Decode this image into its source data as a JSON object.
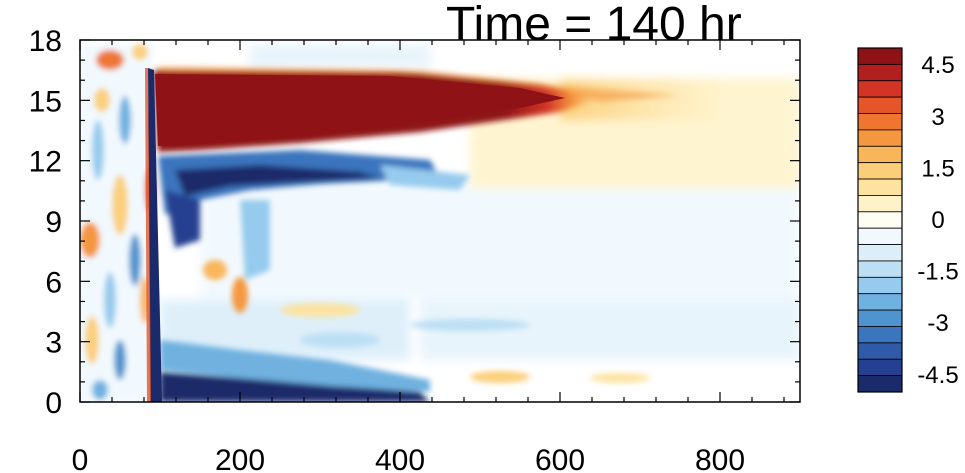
{
  "chart_data": {
    "type": "heatmap",
    "title": "Time = 140 hr",
    "xlabel": "",
    "ylabel": "",
    "xlim": [
      0,
      900
    ],
    "ylim": [
      0,
      18
    ],
    "xticks": [
      0,
      200,
      400,
      600,
      800
    ],
    "yticks": [
      0,
      3,
      6,
      9,
      12,
      15,
      18
    ],
    "colorbar": {
      "levels": [
        -5,
        -4.5,
        -4,
        -3.5,
        -3,
        -2.5,
        -2,
        -1.5,
        -1,
        -0.5,
        0,
        0.5,
        1,
        1.5,
        2,
        2.5,
        3,
        3.5,
        4,
        4.5,
        5
      ],
      "colors": [
        "#1b2a6b",
        "#253f91",
        "#2f5aa8",
        "#3b75bd",
        "#4f94cf",
        "#6fb1e0",
        "#96cbed",
        "#bcdff4",
        "#dbeefa",
        "#f1f9fe",
        "#fffdf4",
        "#fff2c8",
        "#fde3a0",
        "#fbcf7a",
        "#f9b55a",
        "#f5973f",
        "#ef7630",
        "#e4552a",
        "#d23526",
        "#b21f20",
        "#8e1216"
      ],
      "labels": [
        "4.5",
        "3",
        "1.5",
        "0",
        "-1.5",
        "-3",
        "-4.5"
      ],
      "label_values": [
        4.5,
        3,
        1.5,
        0,
        -1.5,
        -3,
        -4.5
      ]
    },
    "features": [
      {
        "name": "upper-warm-jet",
        "x": [
          95,
          600
        ],
        "y": [
          12.8,
          16.6
        ],
        "value": 5
      },
      {
        "name": "cold-band",
        "x": [
          100,
          440
        ],
        "y": [
          10.6,
          12.3
        ],
        "value": -4
      },
      {
        "name": "surface-cold",
        "x": [
          105,
          420
        ],
        "y": [
          0,
          1.2
        ],
        "value": -4
      },
      {
        "name": "front-line",
        "x": [
          86,
          100
        ],
        "y": [
          0,
          17
        ],
        "value": -5
      }
    ]
  }
}
